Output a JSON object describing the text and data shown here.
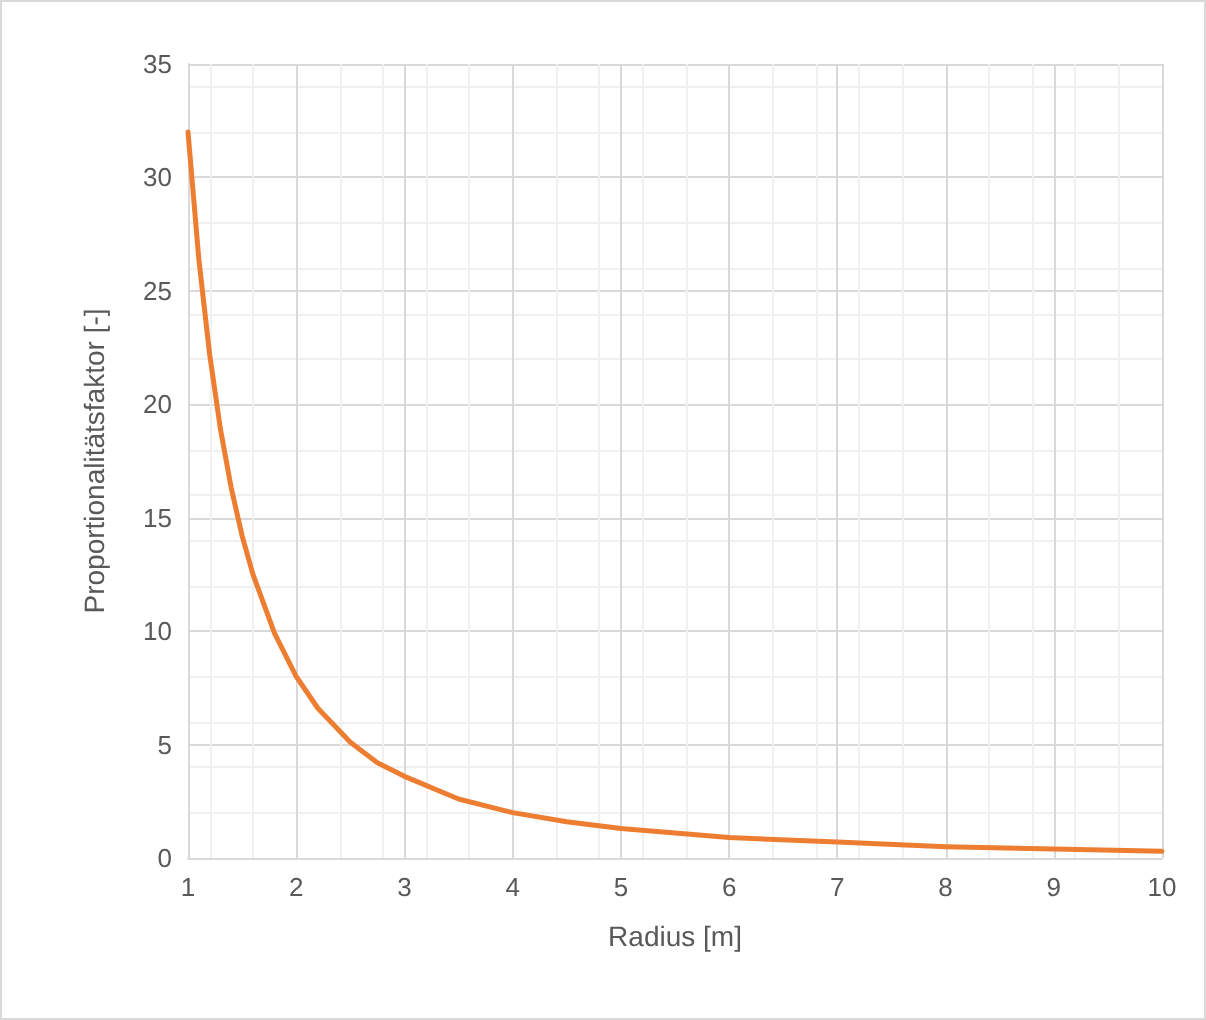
{
  "chart_data": {
    "type": "line",
    "xlabel": "Radius [m]",
    "ylabel": "Proportionalitätsfaktor [-]",
    "x": [
      1,
      1.1,
      1.2,
      1.3,
      1.4,
      1.5,
      1.6,
      1.8,
      2,
      2.2,
      2.5,
      2.75,
      3,
      3.5,
      4,
      4.5,
      5,
      6,
      7,
      8,
      9,
      10
    ],
    "series": [
      {
        "color": "#ed7d31",
        "values": [
          32,
          26.4,
          22.2,
          18.9,
          16.3,
          14.2,
          12.5,
          9.9,
          8,
          6.6,
          5.1,
          4.2,
          3.6,
          2.6,
          2,
          1.6,
          1.3,
          0.9,
          0.7,
          0.5,
          0.4,
          0.3
        ]
      }
    ],
    "xlim": [
      1,
      10
    ],
    "xticks": [
      1,
      2,
      3,
      4,
      5,
      6,
      7,
      8,
      9,
      10
    ],
    "ylim": [
      0,
      35
    ],
    "yticks": [
      0,
      5,
      10,
      15,
      20,
      25,
      30,
      35
    ],
    "grid": true,
    "marker": "none",
    "line_style": "solid"
  }
}
